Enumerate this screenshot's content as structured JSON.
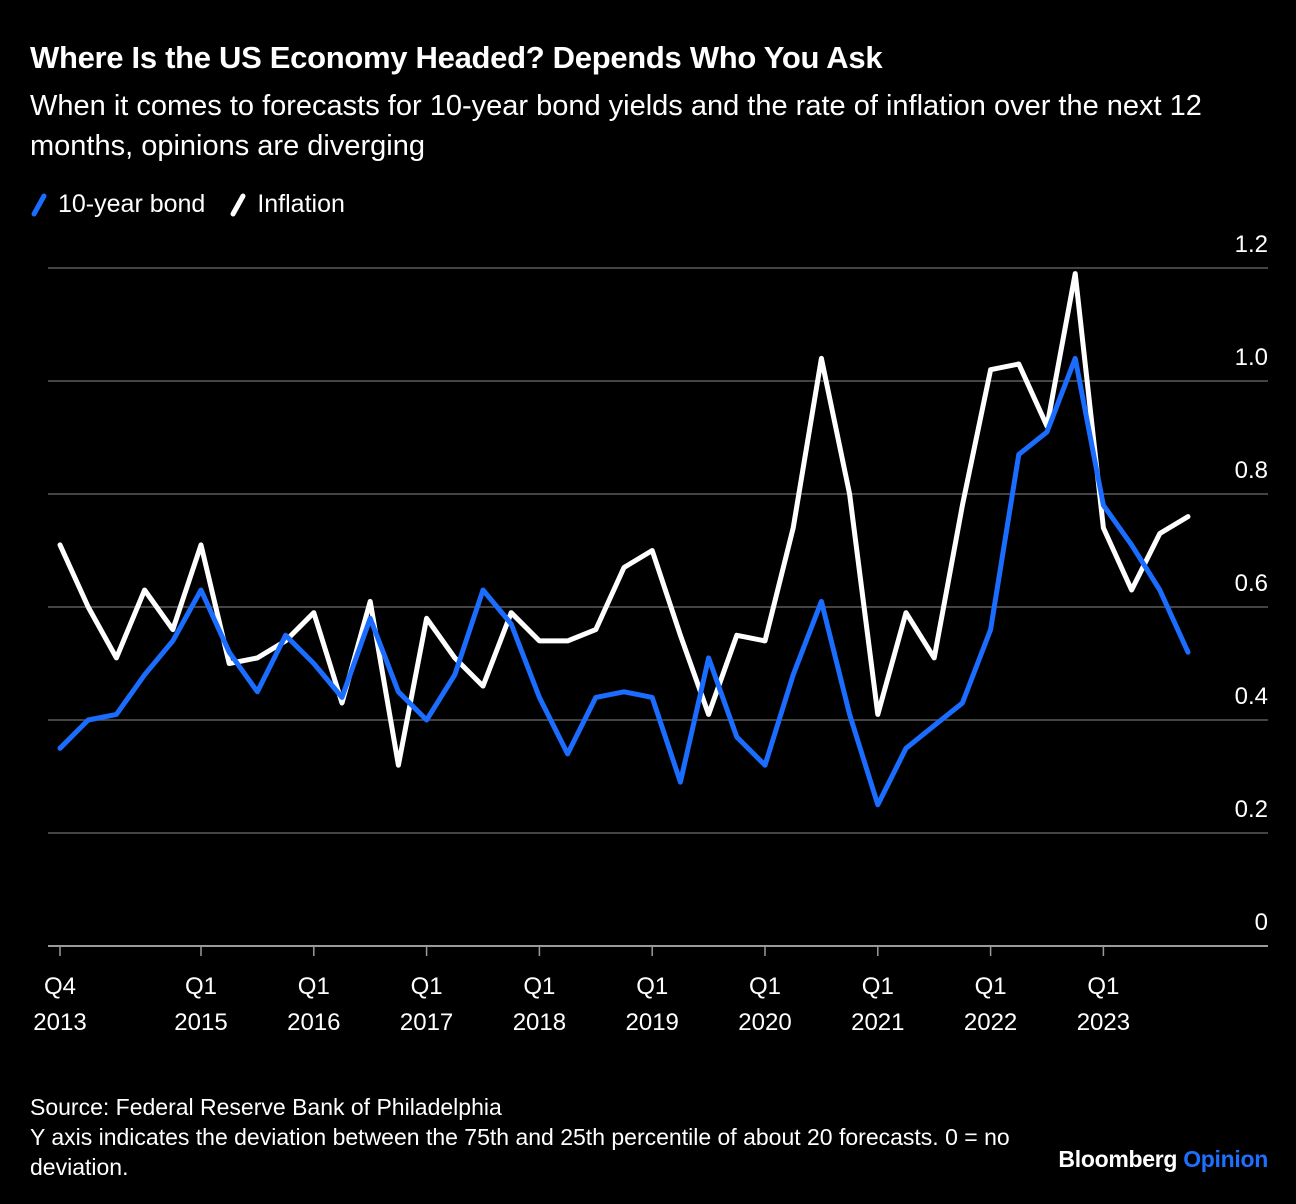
{
  "title": "Where Is the US Economy Headed? Depends Who You Ask",
  "subtitle": "When it comes to forecasts for 10-year bond yields and the rate of inflation over the next 12 months, opinions are diverging",
  "legend": [
    {
      "name": "10-year bond",
      "color": "#1a6dff"
    },
    {
      "name": "Inflation",
      "color": "#ffffff"
    }
  ],
  "footer": {
    "source": "Source: Federal Reserve Bank of Philadelphia",
    "note": "Y axis indicates the deviation between the 75th and 25th percentile of about 20 forecasts. 0 = no deviation."
  },
  "brand": {
    "name": "Bloomberg",
    "suffix": "Opinion"
  },
  "chart_data": {
    "type": "line",
    "title": "Where Is the US Economy Headed? Depends Who You Ask",
    "x": [
      "2013-Q4",
      "2014-Q1",
      "2014-Q2",
      "2014-Q3",
      "2014-Q4",
      "2015-Q1",
      "2015-Q2",
      "2015-Q3",
      "2015-Q4",
      "2016-Q1",
      "2016-Q2",
      "2016-Q3",
      "2016-Q4",
      "2017-Q1",
      "2017-Q2",
      "2017-Q3",
      "2017-Q4",
      "2018-Q1",
      "2018-Q2",
      "2018-Q3",
      "2018-Q4",
      "2019-Q1",
      "2019-Q2",
      "2019-Q3",
      "2019-Q4",
      "2020-Q1",
      "2020-Q2",
      "2020-Q3",
      "2020-Q4",
      "2021-Q1",
      "2021-Q2",
      "2021-Q3",
      "2021-Q4",
      "2022-Q1",
      "2022-Q2",
      "2022-Q3",
      "2022-Q4",
      "2023-Q1",
      "2023-Q2",
      "2023-Q3",
      "2023-Q4"
    ],
    "x_tick_labels": [
      {
        "index": 0,
        "top": "Q4",
        "bottom": "2013"
      },
      {
        "index": 5,
        "top": "Q1",
        "bottom": "2015"
      },
      {
        "index": 9,
        "top": "Q1",
        "bottom": "2016"
      },
      {
        "index": 13,
        "top": "Q1",
        "bottom": "2017"
      },
      {
        "index": 17,
        "top": "Q1",
        "bottom": "2018"
      },
      {
        "index": 21,
        "top": "Q1",
        "bottom": "2019"
      },
      {
        "index": 25,
        "top": "Q1",
        "bottom": "2020"
      },
      {
        "index": 29,
        "top": "Q1",
        "bottom": "2021"
      },
      {
        "index": 33,
        "top": "Q1",
        "bottom": "2022"
      },
      {
        "index": 37,
        "top": "Q1",
        "bottom": "2023"
      }
    ],
    "y_ticks": [
      "0",
      "0.2",
      "0.4",
      "0.6",
      "0.8",
      "1.0",
      "1.2"
    ],
    "ylim": [
      0,
      1.2
    ],
    "y_axis_side": "right",
    "grid": true,
    "legend_position": "top-left",
    "series": [
      {
        "name": "10-year bond",
        "color": "#1a6dff",
        "values": [
          0.35,
          0.4,
          0.41,
          0.48,
          0.54,
          0.63,
          0.52,
          0.45,
          0.55,
          0.5,
          0.44,
          0.58,
          0.45,
          0.4,
          0.48,
          0.63,
          0.57,
          0.44,
          0.34,
          0.44,
          0.45,
          0.44,
          0.29,
          0.51,
          0.37,
          0.32,
          0.48,
          0.61,
          0.41,
          0.25,
          0.35,
          0.39,
          0.43,
          0.56,
          0.87,
          0.91,
          1.04,
          0.78,
          0.71,
          0.63,
          0.52
        ]
      },
      {
        "name": "Inflation",
        "color": "#ffffff",
        "values": [
          0.71,
          0.6,
          0.51,
          0.63,
          0.56,
          0.71,
          0.5,
          0.51,
          0.54,
          0.59,
          0.43,
          0.61,
          0.32,
          0.58,
          0.51,
          0.46,
          0.59,
          0.54,
          0.54,
          0.56,
          0.67,
          0.7,
          0.55,
          0.41,
          0.55,
          0.54,
          0.74,
          1.04,
          0.8,
          0.41,
          0.59,
          0.51,
          0.78,
          1.02,
          1.03,
          0.92,
          1.19,
          0.74,
          0.63,
          0.73,
          0.76
        ]
      }
    ]
  }
}
